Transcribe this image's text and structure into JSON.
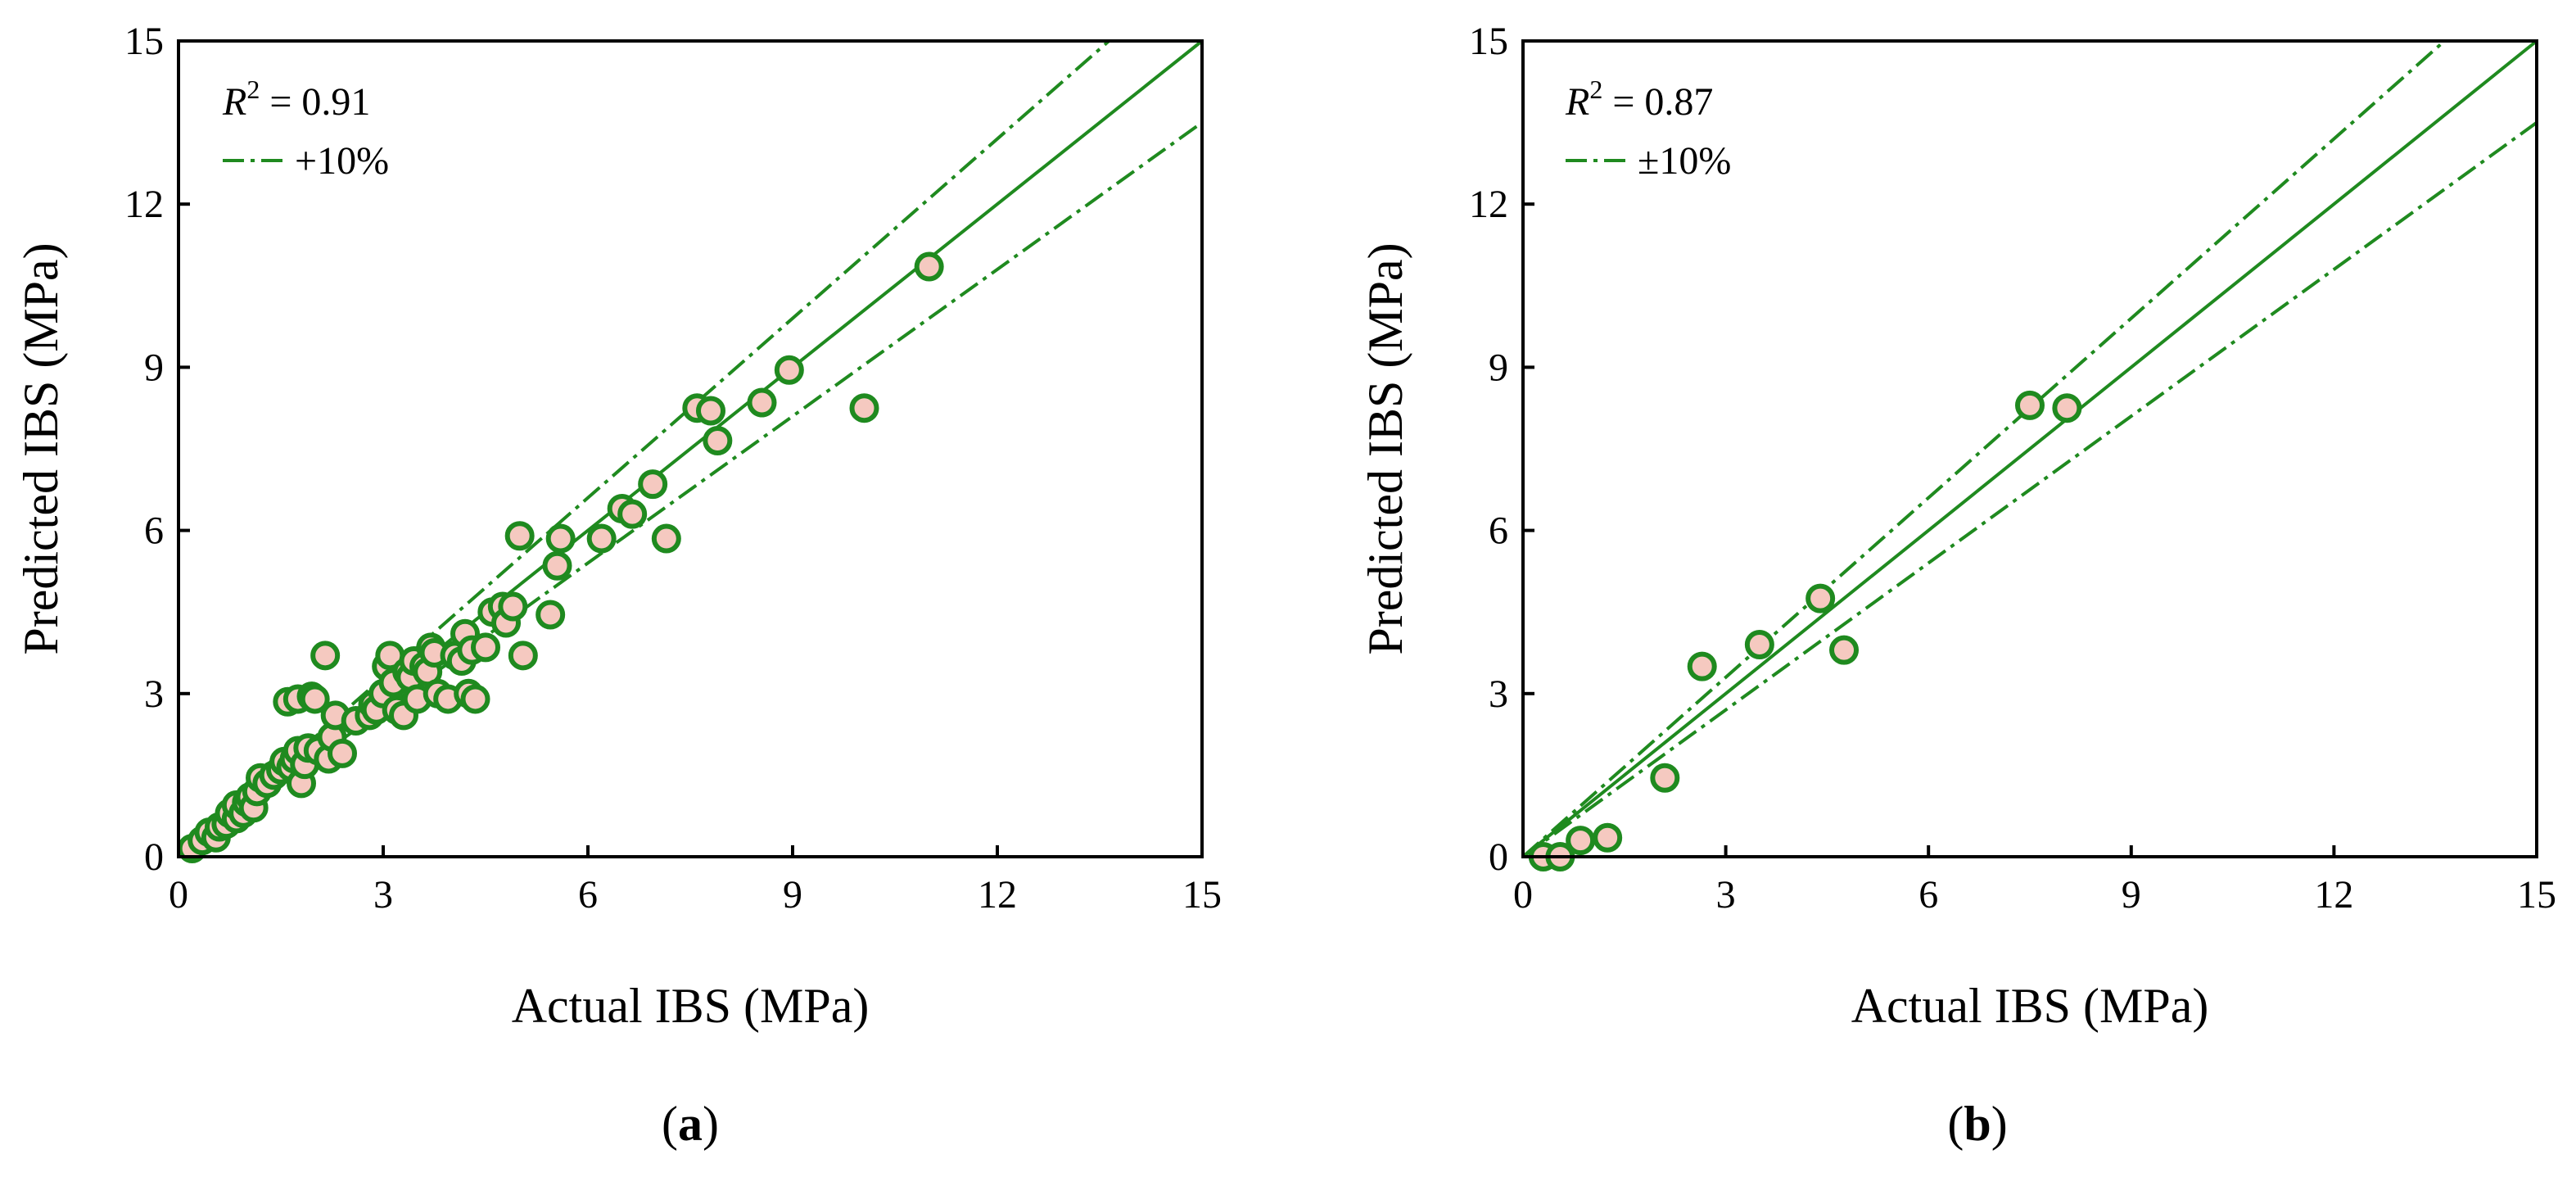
{
  "colors": {
    "line": "#1f8a1f",
    "marker_edge": "#1f8a1f",
    "marker_fill": "#f5c9c0",
    "axis": "#000000"
  },
  "chart_data": [
    {
      "type": "scatter",
      "panel_label": "a",
      "xlabel": "Actual IBS (MPa)",
      "ylabel": "Predicted IBS (MPa)",
      "xlim": [
        0,
        15
      ],
      "ylim": [
        0,
        15
      ],
      "xticks": [
        0,
        3,
        6,
        9,
        12,
        15
      ],
      "yticks": [
        0,
        3,
        6,
        9,
        12,
        15
      ],
      "annotation": {
        "r2_symbol": "R",
        "r2_sup": "2",
        "r2_text": " = 0.91"
      },
      "legend": [
        {
          "label": "+10%",
          "style": "dash-dot"
        }
      ],
      "reference_lines": [
        {
          "name": "identity",
          "slope": 1.0,
          "style": "solid"
        },
        {
          "name": "upper-10pct",
          "slope": 1.1,
          "style": "dash-dot"
        },
        {
          "name": "lower-10pct",
          "slope": 0.9,
          "style": "dash-dot"
        }
      ],
      "points": [
        [
          0.2,
          0.15
        ],
        [
          0.35,
          0.3
        ],
        [
          0.45,
          0.45
        ],
        [
          0.55,
          0.35
        ],
        [
          0.6,
          0.55
        ],
        [
          0.7,
          0.6
        ],
        [
          0.75,
          0.8
        ],
        [
          0.85,
          0.7
        ],
        [
          0.85,
          0.95
        ],
        [
          0.95,
          0.8
        ],
        [
          1.0,
          1.0
        ],
        [
          1.05,
          1.1
        ],
        [
          1.1,
          0.9
        ],
        [
          1.15,
          1.2
        ],
        [
          1.2,
          1.45
        ],
        [
          1.3,
          1.35
        ],
        [
          1.4,
          1.5
        ],
        [
          1.5,
          1.6
        ],
        [
          1.55,
          1.75
        ],
        [
          1.6,
          2.85
        ],
        [
          1.65,
          1.65
        ],
        [
          1.7,
          1.8
        ],
        [
          1.75,
          1.95
        ],
        [
          1.75,
          2.9
        ],
        [
          1.8,
          1.35
        ],
        [
          1.85,
          1.7
        ],
        [
          1.9,
          2.0
        ],
        [
          1.95,
          2.95
        ],
        [
          2.0,
          2.9
        ],
        [
          2.05,
          1.95
        ],
        [
          2.15,
          3.7
        ],
        [
          2.2,
          1.8
        ],
        [
          2.25,
          2.2
        ],
        [
          2.3,
          2.6
        ],
        [
          2.4,
          1.9
        ],
        [
          2.6,
          2.5
        ],
        [
          2.8,
          2.6
        ],
        [
          2.85,
          2.8
        ],
        [
          2.9,
          2.7
        ],
        [
          3.0,
          3.0
        ],
        [
          3.05,
          3.5
        ],
        [
          3.1,
          3.7
        ],
        [
          3.15,
          3.2
        ],
        [
          3.2,
          2.7
        ],
        [
          3.3,
          2.6
        ],
        [
          3.35,
          3.4
        ],
        [
          3.4,
          3.3
        ],
        [
          3.45,
          3.6
        ],
        [
          3.5,
          2.9
        ],
        [
          3.6,
          3.5
        ],
        [
          3.65,
          3.4
        ],
        [
          3.7,
          3.85
        ],
        [
          3.75,
          3.75
        ],
        [
          3.8,
          3.0
        ],
        [
          3.95,
          2.9
        ],
        [
          4.05,
          3.7
        ],
        [
          4.15,
          3.6
        ],
        [
          4.2,
          4.1
        ],
        [
          4.25,
          3.0
        ],
        [
          4.3,
          3.8
        ],
        [
          4.35,
          2.9
        ],
        [
          4.5,
          3.85
        ],
        [
          4.6,
          4.5
        ],
        [
          4.75,
          4.6
        ],
        [
          4.8,
          4.3
        ],
        [
          4.9,
          4.6
        ],
        [
          5.0,
          5.9
        ],
        [
          5.05,
          3.7
        ],
        [
          5.45,
          4.45
        ],
        [
          5.55,
          5.35
        ],
        [
          5.6,
          5.85
        ],
        [
          6.2,
          5.85
        ],
        [
          6.5,
          6.4
        ],
        [
          6.65,
          6.3
        ],
        [
          6.95,
          6.85
        ],
        [
          7.15,
          5.85
        ],
        [
          7.6,
          8.25
        ],
        [
          7.8,
          8.2
        ],
        [
          7.9,
          7.65
        ],
        [
          8.55,
          8.35
        ],
        [
          8.95,
          8.95
        ],
        [
          10.05,
          8.25
        ],
        [
          11.0,
          10.85
        ]
      ]
    },
    {
      "type": "scatter",
      "panel_label": "b",
      "xlabel": "Actual IBS (MPa)",
      "ylabel": "Predicted IBS (MPa)",
      "xlim": [
        0,
        15
      ],
      "ylim": [
        0,
        15
      ],
      "xticks": [
        0,
        3,
        6,
        9,
        12,
        15
      ],
      "yticks": [
        0,
        3,
        6,
        9,
        12,
        15
      ],
      "annotation": {
        "r2_symbol": "R",
        "r2_sup": "2",
        "r2_text": " = 0.87"
      },
      "legend": [
        {
          "label": "±10%",
          "style": "dash-dot"
        }
      ],
      "reference_lines": [
        {
          "name": "identity",
          "slope": 1.0,
          "style": "solid"
        },
        {
          "name": "upper-10pct",
          "slope": 1.1,
          "style": "dash-dot"
        },
        {
          "name": "lower-10pct",
          "slope": 0.9,
          "style": "dash-dot"
        }
      ],
      "points": [
        [
          0.3,
          0.0
        ],
        [
          0.55,
          0.0
        ],
        [
          0.85,
          0.3
        ],
        [
          1.25,
          0.35
        ],
        [
          2.1,
          1.45
        ],
        [
          2.65,
          3.5
        ],
        [
          3.5,
          3.9
        ],
        [
          4.4,
          4.75
        ],
        [
          4.75,
          3.8
        ],
        [
          7.5,
          8.3
        ],
        [
          8.05,
          8.25
        ]
      ]
    }
  ]
}
